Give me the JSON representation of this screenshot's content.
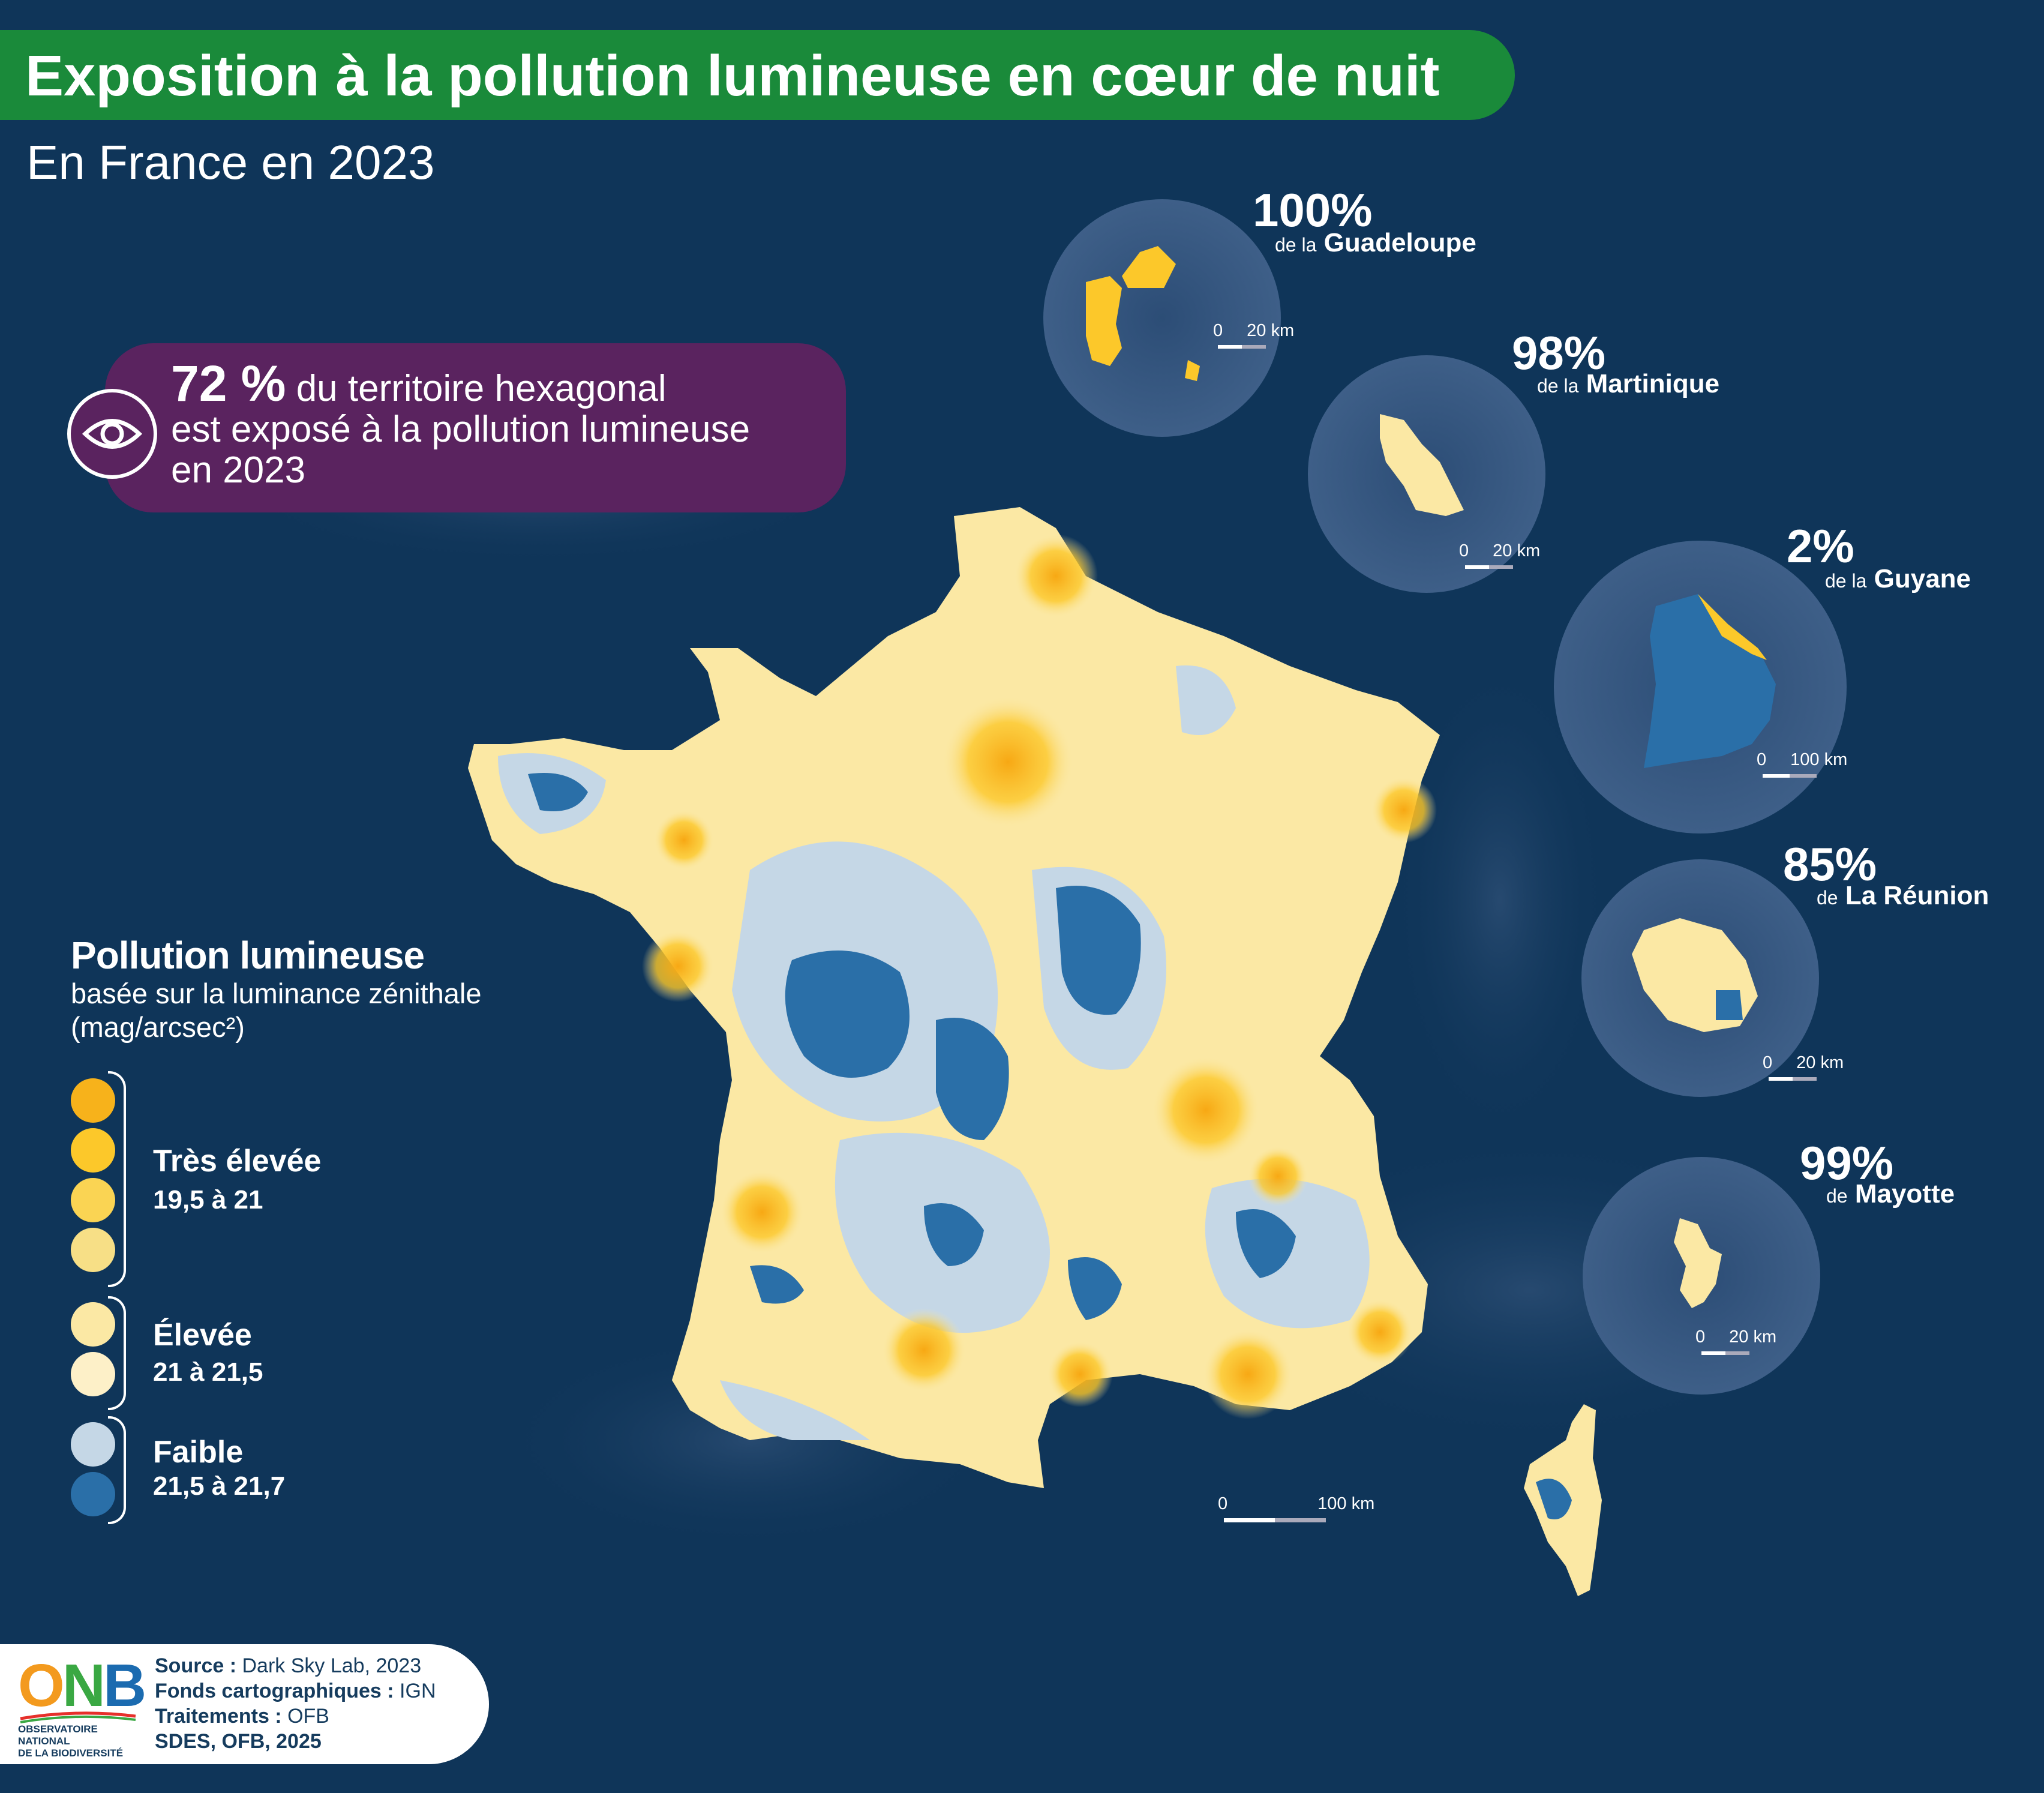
{
  "header": {
    "title": "Exposition à la pollution lumineuse en cœur de nuit",
    "subtitle": "En France en 2023"
  },
  "callout": {
    "percent": "72 %",
    "text_line1": "du territoire hexagonal",
    "text_line2": "est exposé à la pollution lumineuse",
    "text_line3": "en 2023",
    "icon": "eye-icon"
  },
  "overseas": [
    {
      "percent": "100%",
      "prefix": "de la",
      "name": "Guadeloupe",
      "scale_zero": "0",
      "scale_label": "20 km"
    },
    {
      "percent": "98%",
      "prefix": "de la",
      "name": "Martinique",
      "scale_zero": "0",
      "scale_label": "20 km"
    },
    {
      "percent": "2%",
      "prefix": "de la",
      "name": "Guyane",
      "scale_zero": "0",
      "scale_label": "100 km"
    },
    {
      "percent": "85%",
      "prefix": "de",
      "name": "La Réunion",
      "scale_zero": "0",
      "scale_label": "20 km"
    },
    {
      "percent": "99%",
      "prefix": "de",
      "name": "Mayotte",
      "scale_zero": "0",
      "scale_label": "20 km"
    }
  ],
  "main_scale": {
    "zero": "0",
    "label": "100 km"
  },
  "legend": {
    "title": "Pollution lumineuse",
    "subtitle_line1": "basée sur la luminance zénithale",
    "subtitle_line2": "(mag/arcsec²)",
    "groups": [
      {
        "label": "Très élevée",
        "range": "19,5 à 21",
        "colors": [
          "#f7b21b",
          "#fcc82a",
          "#fad453",
          "#f7df86"
        ]
      },
      {
        "label": "Élevée",
        "range": "21 à 21,5",
        "colors": [
          "#fbe8a4",
          "#fdf0c8"
        ]
      },
      {
        "label": "Faible",
        "range": "21,5 à 21,7",
        "colors": [
          "#c5d7e6",
          "#2a6fa8"
        ]
      }
    ]
  },
  "source": {
    "line1_label": "Source :",
    "line1_value": "Dark Sky Lab, 2023",
    "line2_label": "Fonds cartographiques :",
    "line2_value": "IGN",
    "line3_label": "Traitements :",
    "line3_value": "OFB",
    "line4": "SDES, OFB, 2025"
  },
  "logo": {
    "letters": "ONB",
    "caption_line1": "OBSERVATOIRE NATIONAL",
    "caption_line2": "DE LA BIODIVERSITÉ"
  },
  "colors": {
    "background": "#0f3559",
    "title_bar": "#1a8a3a",
    "callout": "#5a235f",
    "very_high": "#f7b21b",
    "high": "#fbe8a4",
    "low_light": "#c5d7e6",
    "low_dark": "#2a6fa8"
  }
}
